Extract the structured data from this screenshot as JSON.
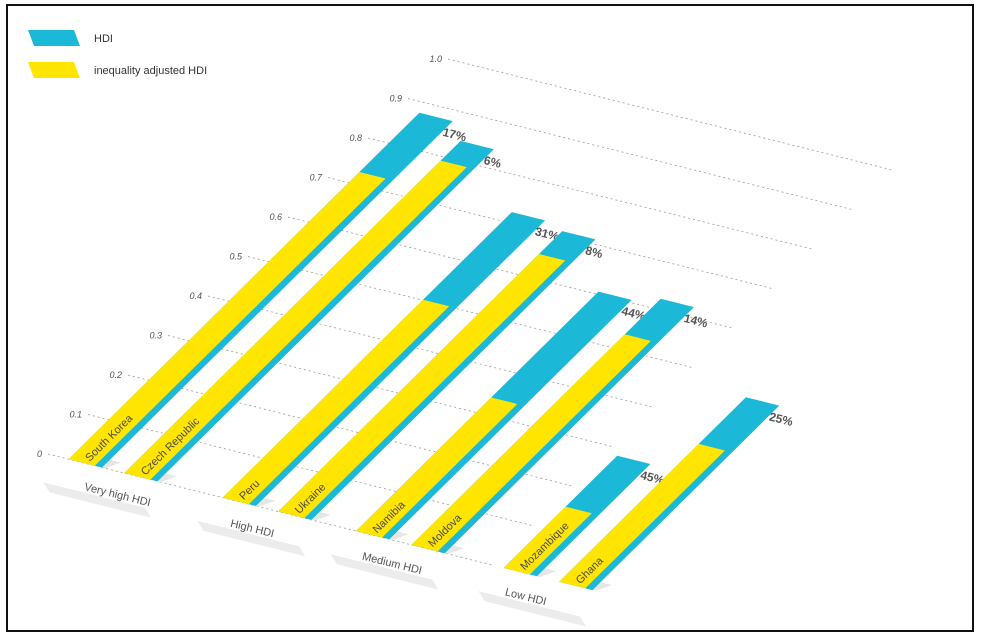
{
  "chart_data": {
    "type": "bar",
    "legend": {
      "placement": "top-left",
      "items": [
        {
          "key": "hdi",
          "label": "HDI",
          "color": "#1CB8D8"
        },
        {
          "key": "ihdi",
          "label": "inequality adjusted HDI",
          "color": "#FFE500"
        }
      ]
    },
    "ylim": [
      0,
      1.0
    ],
    "ticks": [
      "0",
      "0.1",
      "0.2",
      "0.3",
      "0.4",
      "0.5",
      "0.6",
      "0.7",
      "0.8",
      "0.9",
      "1.0"
    ],
    "groups": [
      {
        "label": "Very high HDI",
        "countries": [
          {
            "name": "South Korea",
            "hdi": 0.877,
            "ihdi": 0.727,
            "loss_label": "17%"
          },
          {
            "name": "Czech Republic",
            "hdi": 0.841,
            "ihdi": 0.791,
            "loss_label": "6%"
          }
        ]
      },
      {
        "label": "High HDI",
        "countries": [
          {
            "name": "Peru",
            "hdi": 0.723,
            "ihdi": 0.501,
            "loss_label": "31%"
          },
          {
            "name": "Ukraine",
            "hdi": 0.71,
            "ihdi": 0.652,
            "loss_label": "8%"
          }
        ]
      },
      {
        "label": "Medium HDI",
        "countries": [
          {
            "name": "Namibia",
            "hdi": 0.606,
            "ihdi": 0.338,
            "loss_label": "44%"
          },
          {
            "name": "Moldova",
            "hdi": 0.623,
            "ihdi": 0.533,
            "loss_label": "14%"
          }
        ]
      },
      {
        "label": "Low HDI",
        "countries": [
          {
            "name": "Mozambique",
            "hdi": 0.284,
            "ihdi": 0.155,
            "loss_label": "45%"
          },
          {
            "name": "Ghana",
            "hdi": 0.467,
            "ihdi": 0.349,
            "loss_label": "25%"
          }
        ]
      }
    ]
  }
}
